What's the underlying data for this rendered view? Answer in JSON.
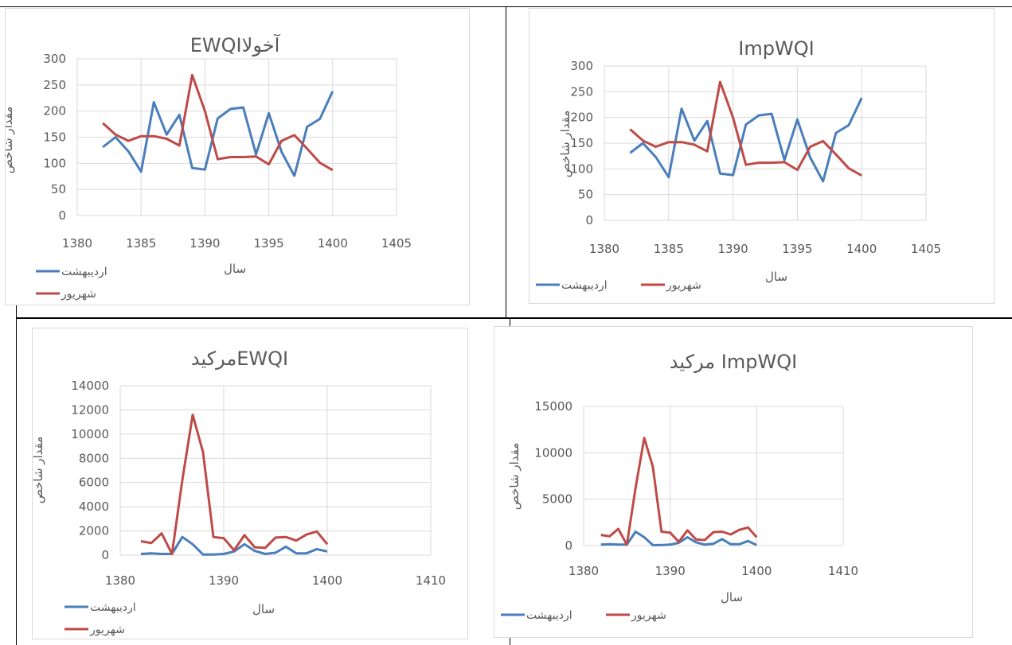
{
  "colors": {
    "ordibehesht": "#4a7ebb",
    "shahrivar": "#be4b48",
    "grid": "#d9d9d9",
    "text": "#595959"
  },
  "charts": [
    {
      "title": "EWQIآخولا",
      "ylabel": "مقدار شاخص",
      "xlabel": "سال",
      "yticks": [
        "0",
        "50",
        "100",
        "150",
        "200",
        "250",
        "300"
      ],
      "xticks": [
        "1380",
        "1385",
        "1390",
        "1395",
        "1400",
        "1405"
      ],
      "legend": [
        "اردیبهشت",
        "شهریور"
      ]
    },
    {
      "title": "ImpWQI",
      "ylabel": "مقدار شاخص",
      "xlabel": "سال",
      "yticks": [
        "0",
        "50",
        "100",
        "150",
        "200",
        "250",
        "300"
      ],
      "xticks": [
        "1380",
        "1385",
        "1390",
        "1395",
        "1400",
        "1405"
      ],
      "legend": [
        "اردیبهشت",
        "شهریور"
      ]
    },
    {
      "title": "مرکیدEWQI",
      "ylabel": "مقدار شاخص",
      "xlabel": "سال",
      "yticks": [
        "0",
        "2000",
        "4000",
        "6000",
        "8000",
        "10000",
        "12000",
        "14000"
      ],
      "xticks": [
        "1380",
        "1390",
        "1400",
        "1410"
      ],
      "legend": [
        "اردیبهشت",
        "شهریور"
      ]
    },
    {
      "title": "مرکید ImpWQI",
      "ylabel": "مقدار شاخص",
      "xlabel": "سال",
      "yticks": [
        "0",
        "5000",
        "10000",
        "15000"
      ],
      "xticks": [
        "1380",
        "1390",
        "1400",
        "1410"
      ],
      "legend": [
        "اردیبهشت",
        "شهریور"
      ]
    }
  ],
  "chart_data": [
    {
      "type": "line",
      "title": "EWQIآخولا",
      "xlabel": "سال",
      "ylabel": "مقدار شاخص",
      "xlim": [
        1380,
        1405
      ],
      "ylim": [
        0,
        300
      ],
      "x": [
        1382,
        1383,
        1384,
        1385,
        1386,
        1387,
        1388,
        1389,
        1390,
        1391,
        1392,
        1393,
        1394,
        1395,
        1396,
        1397,
        1398,
        1399,
        1400
      ],
      "series": [
        {
          "name": "اردیبهشت",
          "values": [
            131,
            150,
            123,
            84,
            217,
            155,
            193,
            91,
            88,
            186,
            204,
            207,
            117,
            196,
            122,
            76,
            170,
            185,
            238
          ]
        },
        {
          "name": "شهریور",
          "values": [
            177,
            155,
            143,
            152,
            152,
            147,
            134,
            269,
            200,
            108,
            112,
            112,
            113,
            98,
            143,
            154,
            128,
            101,
            87
          ]
        }
      ],
      "grid": true,
      "legend_position": "bottom"
    },
    {
      "type": "line",
      "title": "ImpWQI",
      "xlabel": "سال",
      "ylabel": "مقدار شاخص",
      "xlim": [
        1380,
        1405
      ],
      "ylim": [
        0,
        300
      ],
      "x": [
        1382,
        1383,
        1384,
        1385,
        1386,
        1387,
        1388,
        1389,
        1390,
        1391,
        1392,
        1393,
        1394,
        1395,
        1396,
        1397,
        1398,
        1399,
        1400
      ],
      "series": [
        {
          "name": "اردیبهشت",
          "values": [
            131,
            150,
            123,
            84,
            217,
            155,
            193,
            91,
            88,
            186,
            204,
            207,
            117,
            196,
            122,
            76,
            170,
            185,
            238
          ]
        },
        {
          "name": "شهریور",
          "values": [
            177,
            155,
            143,
            152,
            152,
            147,
            134,
            269,
            200,
            108,
            112,
            112,
            113,
            98,
            143,
            154,
            128,
            101,
            87
          ]
        }
      ],
      "grid": true,
      "legend_position": "bottom"
    },
    {
      "type": "line",
      "title": "مرکیدEWQI",
      "xlabel": "سال",
      "ylabel": "مقدار شاخص",
      "xlim": [
        1380,
        1410
      ],
      "ylim": [
        0,
        14000
      ],
      "x": [
        1382,
        1383,
        1384,
        1385,
        1386,
        1387,
        1388,
        1389,
        1390,
        1391,
        1392,
        1393,
        1394,
        1395,
        1396,
        1397,
        1398,
        1399,
        1400
      ],
      "series": [
        {
          "name": "اردیبهشت",
          "values": [
            100,
            150,
            100,
            100,
            1500,
            900,
            50,
            50,
            100,
            300,
            900,
            350,
            100,
            200,
            700,
            150,
            150,
            500,
            300
          ]
        },
        {
          "name": "شهریور",
          "values": [
            1150,
            1000,
            1800,
            100,
            6200,
            11600,
            8500,
            1500,
            1400,
            400,
            1650,
            650,
            600,
            1450,
            1500,
            1200,
            1700,
            1950,
            900
          ]
        }
      ],
      "grid": true,
      "legend_position": "bottom"
    },
    {
      "type": "line",
      "title": "مرکید ImpWQI",
      "xlabel": "سال",
      "ylabel": "مقدار شاخص",
      "xlim": [
        1380,
        1410
      ],
      "ylim": [
        0,
        15000
      ],
      "x": [
        1382,
        1383,
        1384,
        1385,
        1386,
        1387,
        1388,
        1389,
        1390,
        1391,
        1392,
        1393,
        1394,
        1395,
        1396,
        1397,
        1398,
        1399,
        1400
      ],
      "series": [
        {
          "name": "اردیبهشت",
          "values": [
            100,
            150,
            100,
            100,
            1500,
            900,
            50,
            50,
            100,
            300,
            900,
            350,
            100,
            200,
            700,
            150,
            150,
            500,
            50
          ]
        },
        {
          "name": "شهریور",
          "values": [
            1150,
            1000,
            1800,
            100,
            6200,
            11600,
            8500,
            1500,
            1400,
            400,
            1650,
            650,
            600,
            1450,
            1500,
            1200,
            1700,
            1950,
            900
          ]
        }
      ],
      "grid": true,
      "legend_position": "bottom"
    }
  ]
}
